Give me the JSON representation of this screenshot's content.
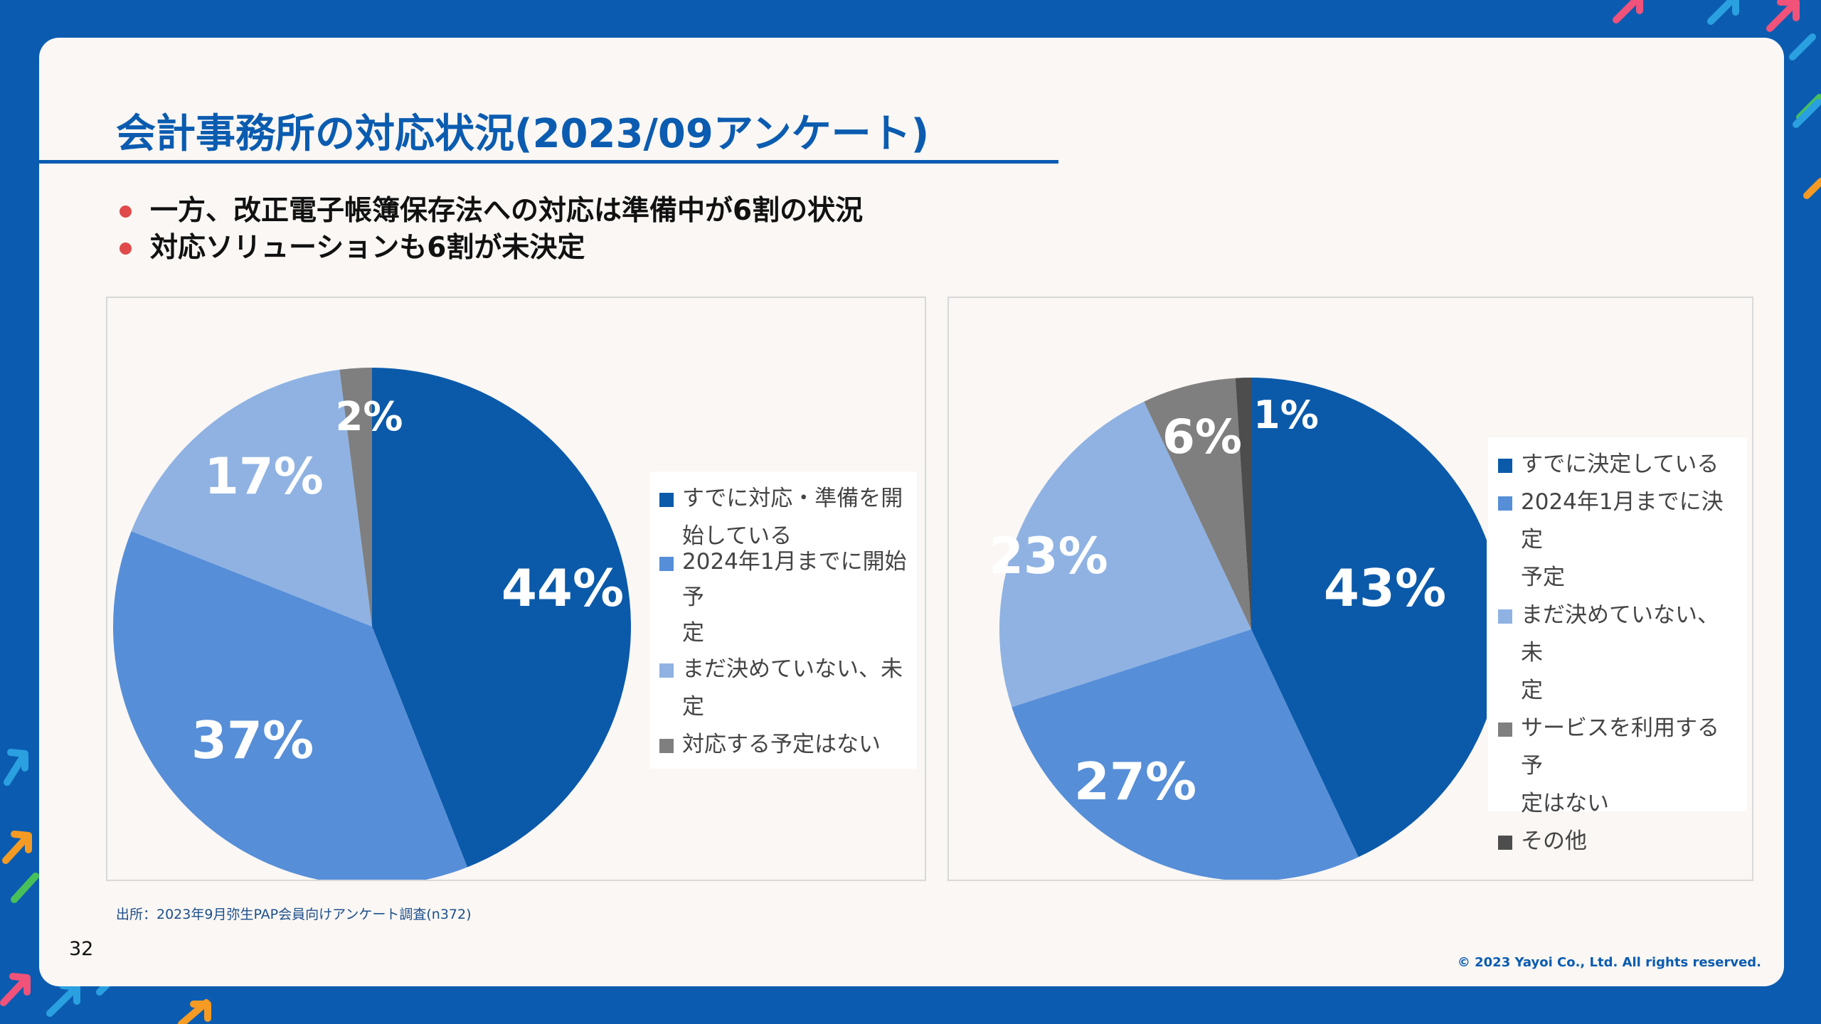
{
  "slide": {
    "title": "会計事務所の対応状況(2023/09アンケート)",
    "bullets": [
      "一方、改正電子帳簿保存法への対応は準備中が6割の状況",
      "対応ソリューションも6割が未決定"
    ],
    "source": "出所：2023年9月弥生PAP会員向けアンケート調査(n372)",
    "page_number": "32",
    "copyright": "© 2023 Yayoi Co., Ltd.  All rights reserved."
  },
  "colors": {
    "brand_blue": "#0b5cb0",
    "bullet_red": "#e04a4a",
    "pie_dark_blue": "#0b5aaa",
    "pie_mid_blue": "#568ed8",
    "pie_light_blue": "#8fb2e3",
    "pie_gray": "#7f7f7f",
    "pie_dark_gray": "#4d4d4d"
  },
  "chart_data": [
    {
      "type": "pie",
      "title": "",
      "labels": [
        "すでに対応・準備を開始している",
        "2024年1月までに開始予定",
        "まだ決めていない、未定",
        "対応する予定はない"
      ],
      "legend_lines": [
        [
          "すでに対応・準備を開",
          "始している"
        ],
        [
          "2024年1月までに開始予",
          "定"
        ],
        [
          "まだ決めていない、未定"
        ],
        [
          "対応する予定はない"
        ]
      ],
      "values": [
        44,
        37,
        17,
        2
      ],
      "data_labels": [
        "44%",
        "37%",
        "17%",
        "2%"
      ],
      "colors": [
        "#0b5aaa",
        "#568ed8",
        "#8fb2e3",
        "#7f7f7f"
      ],
      "legend_position": "right"
    },
    {
      "type": "pie",
      "title": "",
      "labels": [
        "すでに決定している",
        "2024年1月までに決定予定",
        "まだ決めていない、未定",
        "サービスを利用する予定はない",
        "その他"
      ],
      "legend_lines": [
        [
          "すでに決定している"
        ],
        [
          "2024年1月までに決定",
          "予定"
        ],
        [
          "まだ決めていない、未",
          "定"
        ],
        [
          "サービスを利用する予",
          "定はない"
        ],
        [
          "その他"
        ]
      ],
      "values": [
        43,
        27,
        23,
        6,
        1
      ],
      "data_labels": [
        "43%",
        "27%",
        "23%",
        "6%",
        "1%"
      ],
      "colors": [
        "#0b5aaa",
        "#568ed8",
        "#8fb2e3",
        "#7f7f7f",
        "#4d4d4d"
      ],
      "legend_position": "right"
    }
  ]
}
